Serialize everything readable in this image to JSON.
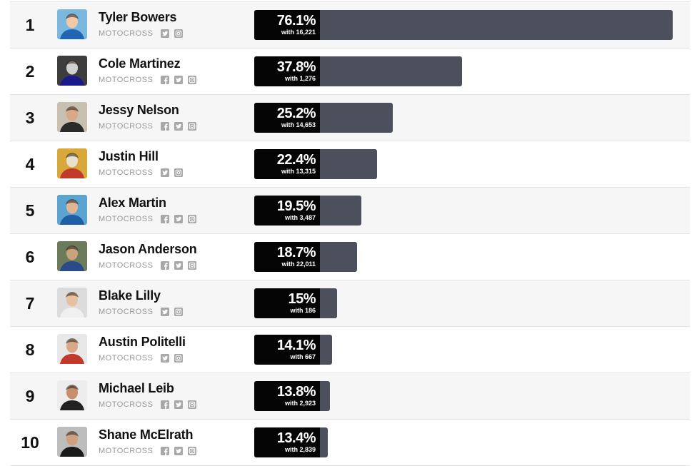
{
  "rows": [
    {
      "rank": "1",
      "name": "Tyler Bowers",
      "category": "MOTOCROSS",
      "socials": [
        "twitter",
        "instagram"
      ],
      "percent": "76.1%",
      "votes": "with 16,221",
      "share": 76.1,
      "avatar": "rider-tyler-bowers"
    },
    {
      "rank": "2",
      "name": "Cole Martinez",
      "category": "MOTOCROSS",
      "socials": [
        "facebook",
        "twitter",
        "instagram"
      ],
      "percent": "37.8%",
      "votes": "with 1,276",
      "share": 37.8,
      "avatar": "rider-cole-martinez"
    },
    {
      "rank": "3",
      "name": "Jessy Nelson",
      "category": "MOTOCROSS",
      "socials": [
        "facebook",
        "twitter",
        "instagram"
      ],
      "percent": "25.2%",
      "votes": "with 14,653",
      "share": 25.2,
      "avatar": "rider-jessy-nelson"
    },
    {
      "rank": "4",
      "name": "Justin Hill",
      "category": "MOTOCROSS",
      "socials": [
        "twitter",
        "instagram"
      ],
      "percent": "22.4%",
      "votes": "with 13,315",
      "share": 22.4,
      "avatar": "rider-justin-hill"
    },
    {
      "rank": "5",
      "name": "Alex Martin",
      "category": "MOTOCROSS",
      "socials": [
        "facebook",
        "twitter",
        "instagram"
      ],
      "percent": "19.5%",
      "votes": "with 3,487",
      "share": 19.5,
      "avatar": "rider-alex-martin"
    },
    {
      "rank": "6",
      "name": "Jason Anderson",
      "category": "MOTOCROSS",
      "socials": [
        "facebook",
        "twitter",
        "instagram"
      ],
      "percent": "18.7%",
      "votes": "with 22,011",
      "share": 18.7,
      "avatar": "rider-jason-anderson"
    },
    {
      "rank": "7",
      "name": "Blake Lilly",
      "category": "MOTOCROSS",
      "socials": [
        "twitter",
        "instagram"
      ],
      "percent": "15%",
      "votes": "with 186",
      "share": 15,
      "avatar": "rider-blake-lilly"
    },
    {
      "rank": "8",
      "name": "Austin Politelli",
      "category": "MOTOCROSS",
      "socials": [
        "twitter",
        "instagram"
      ],
      "percent": "14.1%",
      "votes": "with 667",
      "share": 14.1,
      "avatar": "rider-austin-politelli"
    },
    {
      "rank": "9",
      "name": "Michael Leib",
      "category": "MOTOCROSS",
      "socials": [
        "facebook",
        "twitter",
        "instagram"
      ],
      "percent": "13.8%",
      "votes": "with 2,923",
      "share": 13.8,
      "avatar": "rider-michael-leib"
    },
    {
      "rank": "10",
      "name": "Shane McElrath",
      "category": "MOTOCROSS",
      "socials": [
        "facebook",
        "twitter",
        "instagram"
      ],
      "percent": "13.4%",
      "votes": "with 2,839",
      "share": 13.4,
      "avatar": "rider-shane-mcelrath"
    }
  ],
  "colors": {
    "bar": "#4c4f5c",
    "label_bg": "#050505",
    "social": "#a8a8a8",
    "category": "#999999"
  }
}
